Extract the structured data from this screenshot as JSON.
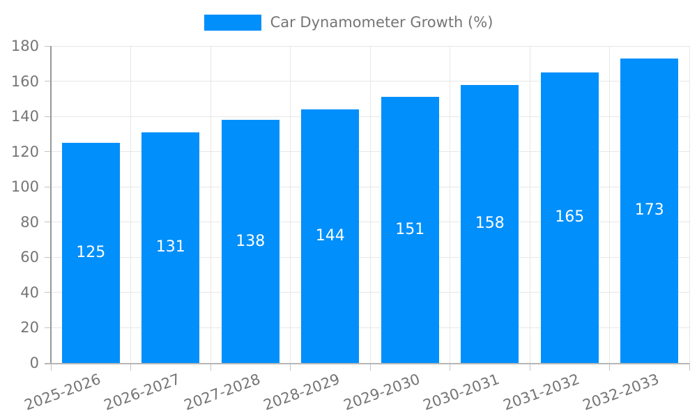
{
  "legend": {
    "label": "Car Dynamometer Growth (%)"
  },
  "colors": {
    "bar": "#008FFB",
    "grid": "#e7e7e7",
    "axis_x": "#b6b6b6",
    "axis_y": "#979797",
    "tick": "#c3c3c3",
    "label_text": "#757575",
    "value_text": "#ffffff",
    "background": "#ffffff"
  },
  "chart_data": {
    "type": "bar",
    "title": "Car Dynamometer Growth (%)",
    "series_name": "Car Dynamometer Growth (%)",
    "categories": [
      "2025-2026",
      "2026-2027",
      "2027-2028",
      "2028-2029",
      "2029-2030",
      "2030-2031",
      "2031-2032",
      "2032-2033"
    ],
    "values": [
      125,
      131,
      138,
      144,
      151,
      158,
      165,
      173
    ],
    "xlabel": "",
    "ylabel": "",
    "ylim": [
      0,
      180
    ],
    "yticks": [
      0,
      20,
      40,
      60,
      80,
      100,
      120,
      140,
      160,
      180
    ],
    "grid": true,
    "legend_position": "top",
    "value_label_position": "inside-center",
    "x_label_rotation_deg": -20
  }
}
